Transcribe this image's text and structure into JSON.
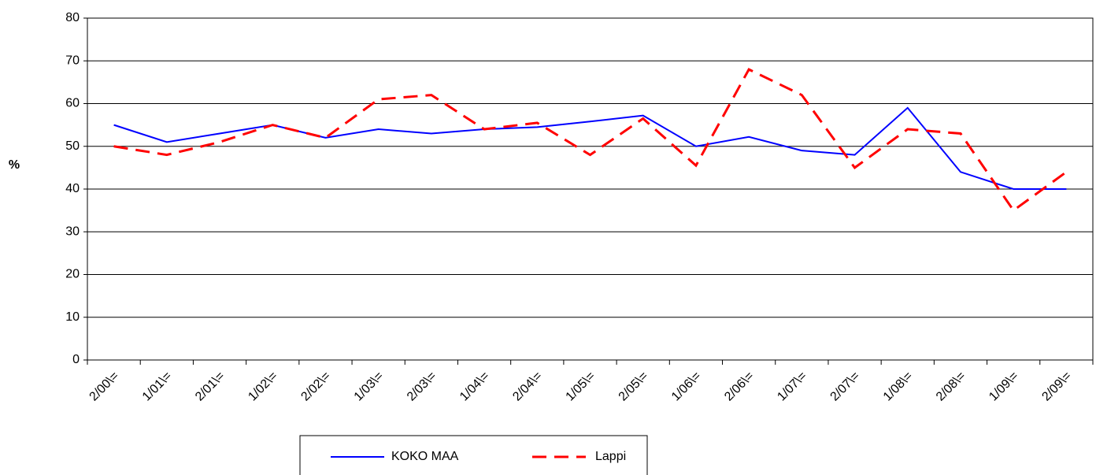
{
  "chart_data": {
    "type": "line",
    "y_label": "%",
    "categories": [
      "2/00\\=",
      "1/01\\=",
      "2/01\\=",
      "1/02\\=",
      "2/02\\=",
      "1/03\\=",
      "2/03\\=",
      "1/04\\=",
      "2/04\\=",
      "1/05\\=",
      "2/05\\=",
      "1/06\\=",
      "2/06\\=",
      "1/07\\=",
      "2/07\\=",
      "1/08\\=",
      "2/08\\=",
      "1/09\\=",
      "2/09\\="
    ],
    "series": [
      {
        "name": "KOKO MAA",
        "color": "#0000ff",
        "dashed": false,
        "values": [
          55,
          51,
          53,
          55,
          52,
          54,
          53,
          54,
          54.5,
          55.8,
          57.2,
          50,
          52.2,
          49,
          48,
          59,
          44,
          40,
          40
        ]
      },
      {
        "name": "Lappi",
        "color": "#ff0000",
        "dashed": true,
        "values": [
          50,
          48,
          51,
          55,
          52,
          61,
          62,
          54,
          55.5,
          48,
          56.5,
          45.5,
          68,
          62,
          45,
          54,
          53,
          35,
          44
        ]
      }
    ],
    "ylim": [
      0,
      80
    ],
    "yticks": [
      0,
      10,
      20,
      30,
      40,
      50,
      60,
      70,
      80
    ],
    "grid": true
  }
}
